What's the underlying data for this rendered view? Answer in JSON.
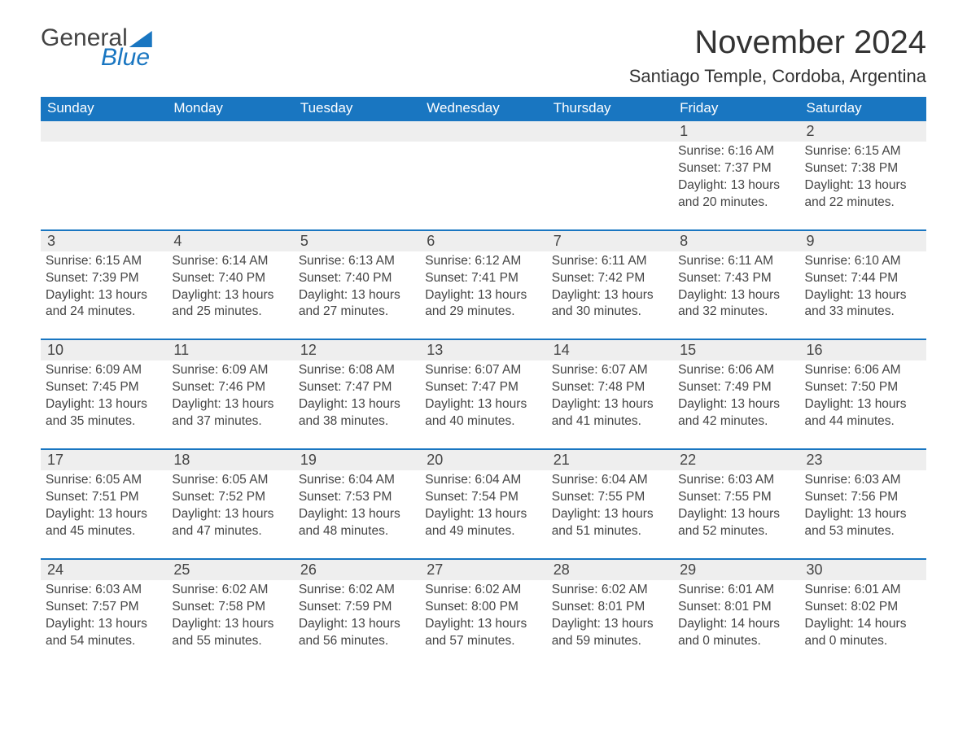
{
  "logo": {
    "text1": "General",
    "text2": "Blue"
  },
  "title": "November 2024",
  "location": "Santiago Temple, Cordoba, Argentina",
  "colors": {
    "header_bg": "#1976c1",
    "header_text": "#ffffff",
    "daynum_bg": "#eeeeee",
    "text": "#444444",
    "row_border": "#1976c1",
    "body_bg": "#ffffff"
  },
  "typography": {
    "title_fontsize": 40,
    "location_fontsize": 22,
    "dayheader_fontsize": 17,
    "daynum_fontsize": 18,
    "info_fontsize": 15.5
  },
  "layout": {
    "columns": 7,
    "rows": 5
  },
  "day_headers": [
    "Sunday",
    "Monday",
    "Tuesday",
    "Wednesday",
    "Thursday",
    "Friday",
    "Saturday"
  ],
  "weeks": [
    [
      null,
      null,
      null,
      null,
      null,
      {
        "n": "1",
        "sunrise": "6:16 AM",
        "sunset": "7:37 PM",
        "daylight": "13 hours and 20 minutes."
      },
      {
        "n": "2",
        "sunrise": "6:15 AM",
        "sunset": "7:38 PM",
        "daylight": "13 hours and 22 minutes."
      }
    ],
    [
      {
        "n": "3",
        "sunrise": "6:15 AM",
        "sunset": "7:39 PM",
        "daylight": "13 hours and 24 minutes."
      },
      {
        "n": "4",
        "sunrise": "6:14 AM",
        "sunset": "7:40 PM",
        "daylight": "13 hours and 25 minutes."
      },
      {
        "n": "5",
        "sunrise": "6:13 AM",
        "sunset": "7:40 PM",
        "daylight": "13 hours and 27 minutes."
      },
      {
        "n": "6",
        "sunrise": "6:12 AM",
        "sunset": "7:41 PM",
        "daylight": "13 hours and 29 minutes."
      },
      {
        "n": "7",
        "sunrise": "6:11 AM",
        "sunset": "7:42 PM",
        "daylight": "13 hours and 30 minutes."
      },
      {
        "n": "8",
        "sunrise": "6:11 AM",
        "sunset": "7:43 PM",
        "daylight": "13 hours and 32 minutes."
      },
      {
        "n": "9",
        "sunrise": "6:10 AM",
        "sunset": "7:44 PM",
        "daylight": "13 hours and 33 minutes."
      }
    ],
    [
      {
        "n": "10",
        "sunrise": "6:09 AM",
        "sunset": "7:45 PM",
        "daylight": "13 hours and 35 minutes."
      },
      {
        "n": "11",
        "sunrise": "6:09 AM",
        "sunset": "7:46 PM",
        "daylight": "13 hours and 37 minutes."
      },
      {
        "n": "12",
        "sunrise": "6:08 AM",
        "sunset": "7:47 PM",
        "daylight": "13 hours and 38 minutes."
      },
      {
        "n": "13",
        "sunrise": "6:07 AM",
        "sunset": "7:47 PM",
        "daylight": "13 hours and 40 minutes."
      },
      {
        "n": "14",
        "sunrise": "6:07 AM",
        "sunset": "7:48 PM",
        "daylight": "13 hours and 41 minutes."
      },
      {
        "n": "15",
        "sunrise": "6:06 AM",
        "sunset": "7:49 PM",
        "daylight": "13 hours and 42 minutes."
      },
      {
        "n": "16",
        "sunrise": "6:06 AM",
        "sunset": "7:50 PM",
        "daylight": "13 hours and 44 minutes."
      }
    ],
    [
      {
        "n": "17",
        "sunrise": "6:05 AM",
        "sunset": "7:51 PM",
        "daylight": "13 hours and 45 minutes."
      },
      {
        "n": "18",
        "sunrise": "6:05 AM",
        "sunset": "7:52 PM",
        "daylight": "13 hours and 47 minutes."
      },
      {
        "n": "19",
        "sunrise": "6:04 AM",
        "sunset": "7:53 PM",
        "daylight": "13 hours and 48 minutes."
      },
      {
        "n": "20",
        "sunrise": "6:04 AM",
        "sunset": "7:54 PM",
        "daylight": "13 hours and 49 minutes."
      },
      {
        "n": "21",
        "sunrise": "6:04 AM",
        "sunset": "7:55 PM",
        "daylight": "13 hours and 51 minutes."
      },
      {
        "n": "22",
        "sunrise": "6:03 AM",
        "sunset": "7:55 PM",
        "daylight": "13 hours and 52 minutes."
      },
      {
        "n": "23",
        "sunrise": "6:03 AM",
        "sunset": "7:56 PM",
        "daylight": "13 hours and 53 minutes."
      }
    ],
    [
      {
        "n": "24",
        "sunrise": "6:03 AM",
        "sunset": "7:57 PM",
        "daylight": "13 hours and 54 minutes."
      },
      {
        "n": "25",
        "sunrise": "6:02 AM",
        "sunset": "7:58 PM",
        "daylight": "13 hours and 55 minutes."
      },
      {
        "n": "26",
        "sunrise": "6:02 AM",
        "sunset": "7:59 PM",
        "daylight": "13 hours and 56 minutes."
      },
      {
        "n": "27",
        "sunrise": "6:02 AM",
        "sunset": "8:00 PM",
        "daylight": "13 hours and 57 minutes."
      },
      {
        "n": "28",
        "sunrise": "6:02 AM",
        "sunset": "8:01 PM",
        "daylight": "13 hours and 59 minutes."
      },
      {
        "n": "29",
        "sunrise": "6:01 AM",
        "sunset": "8:01 PM",
        "daylight": "14 hours and 0 minutes."
      },
      {
        "n": "30",
        "sunrise": "6:01 AM",
        "sunset": "8:02 PM",
        "daylight": "14 hours and 0 minutes."
      }
    ]
  ],
  "labels": {
    "sunrise": "Sunrise: ",
    "sunset": "Sunset: ",
    "daylight": "Daylight: "
  }
}
